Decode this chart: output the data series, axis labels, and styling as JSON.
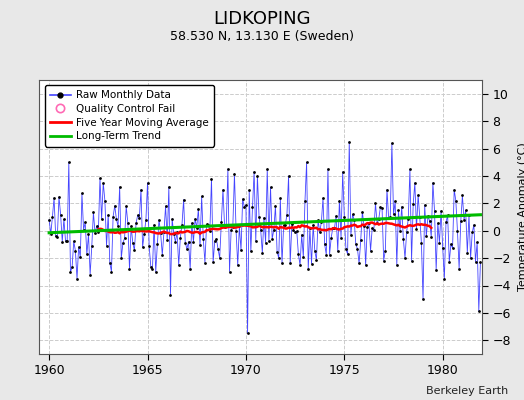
{
  "title": "LIDKOPING",
  "subtitle": "58.530 N, 13.130 E (Sweden)",
  "ylabel": "Temperature Anomaly (°C)",
  "credit": "Berkeley Earth",
  "xlim": [
    1959.5,
    1982
  ],
  "ylim": [
    -9,
    11
  ],
  "yticks": [
    -8,
    -6,
    -4,
    -2,
    0,
    2,
    4,
    6,
    8,
    10
  ],
  "xticks": [
    1960,
    1965,
    1970,
    1975,
    1980
  ],
  "bg_color": "#e8e8e8",
  "plot_bg_color": "#ffffff",
  "raw_line_color": "#4444ff",
  "raw_marker_color": "#000000",
  "moving_avg_color": "#ff0000",
  "trend_color": "#00bb00",
  "legend_border_color": "#000000",
  "grid_color": "#cccccc",
  "seed": 42,
  "n_months": 264,
  "start_year": 1960,
  "trend_slope": 0.005,
  "trend_intercept": -0.15,
  "moving_avg_window": 60
}
